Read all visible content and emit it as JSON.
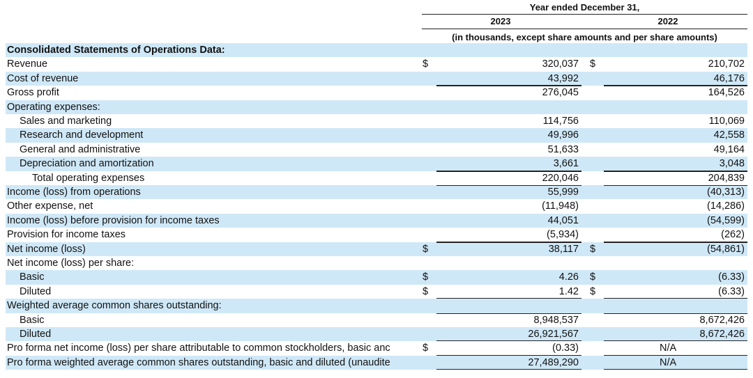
{
  "header": {
    "period": "Year ended December 31,",
    "years": [
      "2023",
      "2022"
    ],
    "note": "(in thousands, except share amounts and per share amounts)"
  },
  "rows": [
    {
      "label": "Consolidated Statements of Operations Data:"
    },
    {
      "label": "Revenue",
      "currency_2023": "$",
      "value_2023": "320,037",
      "currency_2022": "$",
      "value_2022": "210,702"
    },
    {
      "label": "Cost of revenue",
      "value_2023": "43,992",
      "value_2022": "46,176"
    },
    {
      "label": "Gross profit",
      "value_2023": "276,045",
      "value_2022": "164,526"
    },
    {
      "label": "Operating expenses:"
    },
    {
      "label": "Sales and marketing",
      "value_2023": "114,756",
      "value_2022": "110,069"
    },
    {
      "label": "Research and development",
      "value_2023": "49,996",
      "value_2022": "42,558"
    },
    {
      "label": "General and administrative",
      "value_2023": "51,633",
      "value_2022": "49,164"
    },
    {
      "label": "Depreciation and amortization",
      "value_2023": "3,661",
      "value_2022": "3,048"
    },
    {
      "label": "Total operating expenses",
      "value_2023": "220,046",
      "value_2022": "204,839"
    },
    {
      "label": "Income (loss) from operations",
      "value_2023": "55,999",
      "value_2022": "(40,313)"
    },
    {
      "label": "Other expense, net",
      "value_2023": "(11,948)",
      "value_2022": "(14,286)"
    },
    {
      "label": "Income (loss) before provision for income taxes",
      "value_2023": "44,051",
      "value_2022": "(54,599)"
    },
    {
      "label": "Provision for income taxes",
      "value_2023": "(5,934)",
      "value_2022": "(262)"
    },
    {
      "label": "Net income (loss)",
      "currency_2023": "$",
      "value_2023": "38,117",
      "currency_2022": "$",
      "value_2022": "(54,861)"
    },
    {
      "label": "Net income (loss) per share:"
    },
    {
      "label": "Basic",
      "currency_2023": "$",
      "value_2023": "4.26",
      "currency_2022": "$",
      "value_2022": "(6.33)"
    },
    {
      "label": "Diluted",
      "currency_2023": "$",
      "value_2023": "1.42",
      "currency_2022": "$",
      "value_2022": "(6.33)"
    },
    {
      "label": "Weighted average common shares outstanding:"
    },
    {
      "label": "Basic",
      "value_2023": "8,948,537",
      "value_2022": "8,672,426"
    },
    {
      "label": "Diluted",
      "value_2023": "26,921,567",
      "value_2022": "8,672,426"
    },
    {
      "label": "Pro forma net income (loss) per share attributable to common stockholders, basic anc",
      "currency_2023": "$",
      "value_2023": "(0.33)",
      "value_2022": "N/A"
    },
    {
      "label": "Pro forma weighted average common shares outstanding, basic and diluted (unaudite",
      "value_2023": "27,489,290",
      "value_2022": "N/A"
    }
  ]
}
